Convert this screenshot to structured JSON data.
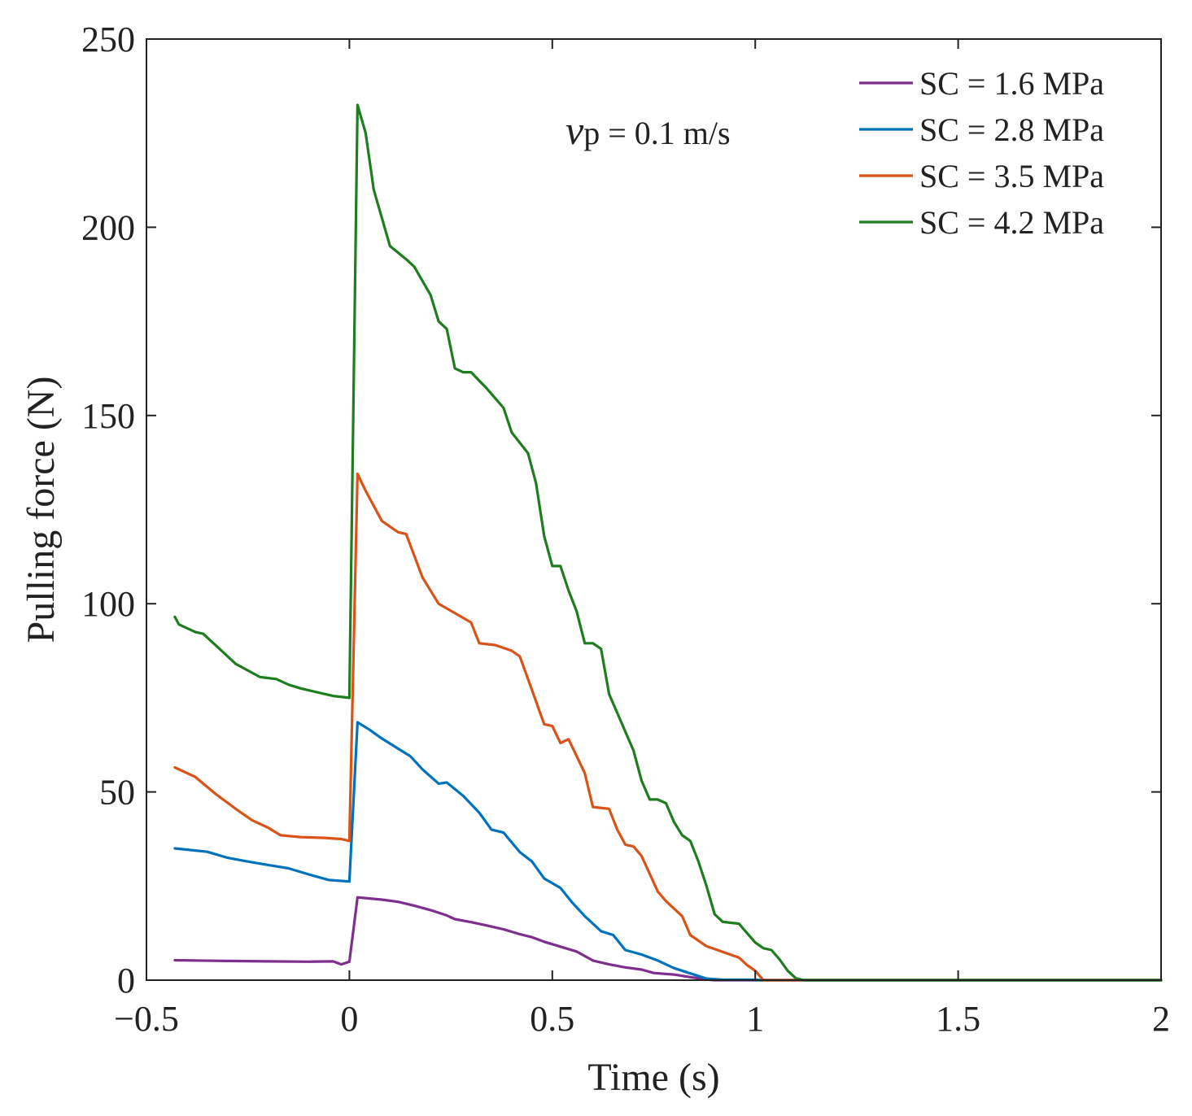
{
  "chart_data": {
    "type": "line",
    "title": "",
    "xlabel": "Time (s)",
    "ylabel": "Pulling force (N)",
    "xlim": [
      -0.5,
      2
    ],
    "ylim": [
      0,
      250
    ],
    "xticks": [
      -0.5,
      0,
      0.5,
      1,
      1.5,
      2
    ],
    "yticks": [
      0,
      50,
      100,
      150,
      200,
      250
    ],
    "xtick_labels": [
      "−0.5",
      "0",
      "0.5",
      "1",
      "1.5",
      "2"
    ],
    "ytick_labels": [
      "0",
      "50",
      "100",
      "150",
      "200",
      "250"
    ],
    "grid": false,
    "legend_position": "top-right",
    "annotation": {
      "symbol": "v",
      "subscript": "p",
      "text": " = 0.1 m/s"
    },
    "series": [
      {
        "name": "SC = 1.6 MPa",
        "color": "#7E2F8E",
        "points": [
          [
            -0.43,
            5.3
          ],
          [
            -0.3,
            5.1
          ],
          [
            -0.2,
            5.0
          ],
          [
            -0.1,
            4.9
          ],
          [
            -0.04,
            5.0
          ],
          [
            -0.02,
            4.2
          ],
          [
            0,
            4.9
          ],
          [
            0.02,
            22.0
          ],
          [
            0.05,
            21.7
          ],
          [
            0.08,
            21.4
          ],
          [
            0.12,
            20.8
          ],
          [
            0.16,
            19.8
          ],
          [
            0.2,
            18.6
          ],
          [
            0.24,
            17.2
          ],
          [
            0.26,
            16.2
          ],
          [
            0.3,
            15.4
          ],
          [
            0.34,
            14.5
          ],
          [
            0.38,
            13.5
          ],
          [
            0.42,
            12.2
          ],
          [
            0.45,
            11.4
          ],
          [
            0.48,
            10.2
          ],
          [
            0.52,
            8.9
          ],
          [
            0.56,
            7.6
          ],
          [
            0.6,
            5.2
          ],
          [
            0.64,
            4.2
          ],
          [
            0.68,
            3.4
          ],
          [
            0.72,
            2.8
          ],
          [
            0.75,
            1.9
          ],
          [
            0.8,
            1.5
          ],
          [
            0.84,
            0.8
          ],
          [
            0.88,
            0.2
          ],
          [
            0.9,
            0.0
          ],
          [
            1.0,
            0.0
          ],
          [
            2.0,
            0.0
          ]
        ]
      },
      {
        "name": "SC = 2.8 MPa",
        "color": "#0072BD",
        "points": [
          [
            -0.43,
            35.0
          ],
          [
            -0.35,
            34.1
          ],
          [
            -0.3,
            32.5
          ],
          [
            -0.25,
            31.5
          ],
          [
            -0.2,
            30.6
          ],
          [
            -0.15,
            29.7
          ],
          [
            -0.1,
            28.1
          ],
          [
            -0.05,
            26.6
          ],
          [
            0,
            26.2
          ],
          [
            0.02,
            68.5
          ],
          [
            0.05,
            66.5
          ],
          [
            0.08,
            64.2
          ],
          [
            0.12,
            61.5
          ],
          [
            0.15,
            59.5
          ],
          [
            0.18,
            56.0
          ],
          [
            0.22,
            52.2
          ],
          [
            0.24,
            52.5
          ],
          [
            0.28,
            49.0
          ],
          [
            0.32,
            44.5
          ],
          [
            0.35,
            40.0
          ],
          [
            0.38,
            39.2
          ],
          [
            0.42,
            34.0
          ],
          [
            0.45,
            31.5
          ],
          [
            0.48,
            27.0
          ],
          [
            0.52,
            24.5
          ],
          [
            0.55,
            20.5
          ],
          [
            0.58,
            17.0
          ],
          [
            0.62,
            13.0
          ],
          [
            0.65,
            12.0
          ],
          [
            0.68,
            8.0
          ],
          [
            0.72,
            6.8
          ],
          [
            0.76,
            5.2
          ],
          [
            0.8,
            3.2
          ],
          [
            0.84,
            1.8
          ],
          [
            0.88,
            0.4
          ],
          [
            0.92,
            0.1
          ],
          [
            1.0,
            0.1
          ],
          [
            1.01,
            0.0
          ],
          [
            2.0,
            0.0
          ]
        ]
      },
      {
        "name": "SC = 3.5 MPa",
        "color": "#D95319",
        "points": [
          [
            -0.43,
            56.5
          ],
          [
            -0.38,
            54.0
          ],
          [
            -0.33,
            49.5
          ],
          [
            -0.28,
            45.5
          ],
          [
            -0.24,
            42.5
          ],
          [
            -0.2,
            40.5
          ],
          [
            -0.17,
            38.5
          ],
          [
            -0.12,
            38.0
          ],
          [
            -0.06,
            37.8
          ],
          [
            -0.02,
            37.5
          ],
          [
            0,
            37.0
          ],
          [
            0.02,
            134.5
          ],
          [
            0.04,
            130.0
          ],
          [
            0.08,
            122.0
          ],
          [
            0.12,
            119.0
          ],
          [
            0.14,
            118.5
          ],
          [
            0.18,
            107.0
          ],
          [
            0.22,
            100.0
          ],
          [
            0.26,
            97.5
          ],
          [
            0.3,
            95.0
          ],
          [
            0.32,
            89.5
          ],
          [
            0.36,
            89.0
          ],
          [
            0.4,
            87.5
          ],
          [
            0.42,
            86.0
          ],
          [
            0.45,
            77.0
          ],
          [
            0.48,
            68.0
          ],
          [
            0.5,
            67.5
          ],
          [
            0.52,
            63.0
          ],
          [
            0.54,
            64.0
          ],
          [
            0.58,
            55.0
          ],
          [
            0.6,
            46.0
          ],
          [
            0.64,
            45.5
          ],
          [
            0.66,
            40.0
          ],
          [
            0.68,
            36.0
          ],
          [
            0.7,
            35.5
          ],
          [
            0.72,
            33.0
          ],
          [
            0.76,
            23.5
          ],
          [
            0.78,
            21.0
          ],
          [
            0.82,
            17.0
          ],
          [
            0.84,
            12.0
          ],
          [
            0.88,
            9.0
          ],
          [
            0.92,
            7.5
          ],
          [
            0.96,
            6.0
          ],
          [
            0.98,
            4.0
          ],
          [
            1.0,
            2.5
          ],
          [
            1.02,
            0.0
          ],
          [
            1.1,
            0.0
          ],
          [
            2.0,
            0.0
          ]
        ]
      },
      {
        "name": "SC = 4.2 MPa",
        "color": "#1E7D1E",
        "points": [
          [
            -0.43,
            96.5
          ],
          [
            -0.42,
            94.5
          ],
          [
            -0.38,
            92.5
          ],
          [
            -0.36,
            92.0
          ],
          [
            -0.32,
            88.0
          ],
          [
            -0.28,
            84.0
          ],
          [
            -0.22,
            80.5
          ],
          [
            -0.18,
            80.0
          ],
          [
            -0.15,
            78.5
          ],
          [
            -0.12,
            77.5
          ],
          [
            -0.08,
            76.5
          ],
          [
            -0.04,
            75.5
          ],
          [
            0,
            75.0
          ],
          [
            0.02,
            232.5
          ],
          [
            0.04,
            225.0
          ],
          [
            0.06,
            210.0
          ],
          [
            0.1,
            195.0
          ],
          [
            0.14,
            191.5
          ],
          [
            0.16,
            189.5
          ],
          [
            0.2,
            182.0
          ],
          [
            0.22,
            175.0
          ],
          [
            0.24,
            173.0
          ],
          [
            0.26,
            162.5
          ],
          [
            0.28,
            161.5
          ],
          [
            0.3,
            161.5
          ],
          [
            0.34,
            157.0
          ],
          [
            0.38,
            152.0
          ],
          [
            0.4,
            145.5
          ],
          [
            0.44,
            140.0
          ],
          [
            0.46,
            132.0
          ],
          [
            0.48,
            118.0
          ],
          [
            0.5,
            110.0
          ],
          [
            0.52,
            110.0
          ],
          [
            0.54,
            103.5
          ],
          [
            0.56,
            98.0
          ],
          [
            0.58,
            89.5
          ],
          [
            0.6,
            89.5
          ],
          [
            0.62,
            88.0
          ],
          [
            0.64,
            76.0
          ],
          [
            0.66,
            71.0
          ],
          [
            0.7,
            61.0
          ],
          [
            0.72,
            53.0
          ],
          [
            0.74,
            48.0
          ],
          [
            0.76,
            48.0
          ],
          [
            0.78,
            47.0
          ],
          [
            0.8,
            42.0
          ],
          [
            0.82,
            38.5
          ],
          [
            0.84,
            37.0
          ],
          [
            0.86,
            31.5
          ],
          [
            0.88,
            25.0
          ],
          [
            0.9,
            17.5
          ],
          [
            0.92,
            15.5
          ],
          [
            0.96,
            15.0
          ],
          [
            0.98,
            12.5
          ],
          [
            1.0,
            10.0
          ],
          [
            1.02,
            8.5
          ],
          [
            1.04,
            8.0
          ],
          [
            1.06,
            5.5
          ],
          [
            1.08,
            2.5
          ],
          [
            1.1,
            0.5
          ],
          [
            1.12,
            0.0
          ],
          [
            2.0,
            0.0
          ]
        ]
      }
    ]
  }
}
